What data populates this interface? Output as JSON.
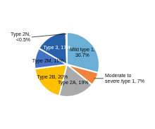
{
  "chart_data": {
    "type": "pie",
    "categories": [
      "Mild type 1,\n30.7%",
      "Moderate to\nsevere type 1, 7%",
      "Type 2A, 19%",
      "Type 2B, 20%",
      "Type 2M, 11%",
      "Type 3, 17%",
      "Type 2N,\n<0.5%"
    ],
    "values": [
      30.7,
      7.0,
      19.0,
      20.0,
      11.0,
      17.0,
      0.5
    ],
    "colors": [
      "#6BAED6",
      "#F0823C",
      "#AAAAAA",
      "#FFC000",
      "#4472C4",
      "#2660A8",
      "#70AEDD"
    ]
  }
}
